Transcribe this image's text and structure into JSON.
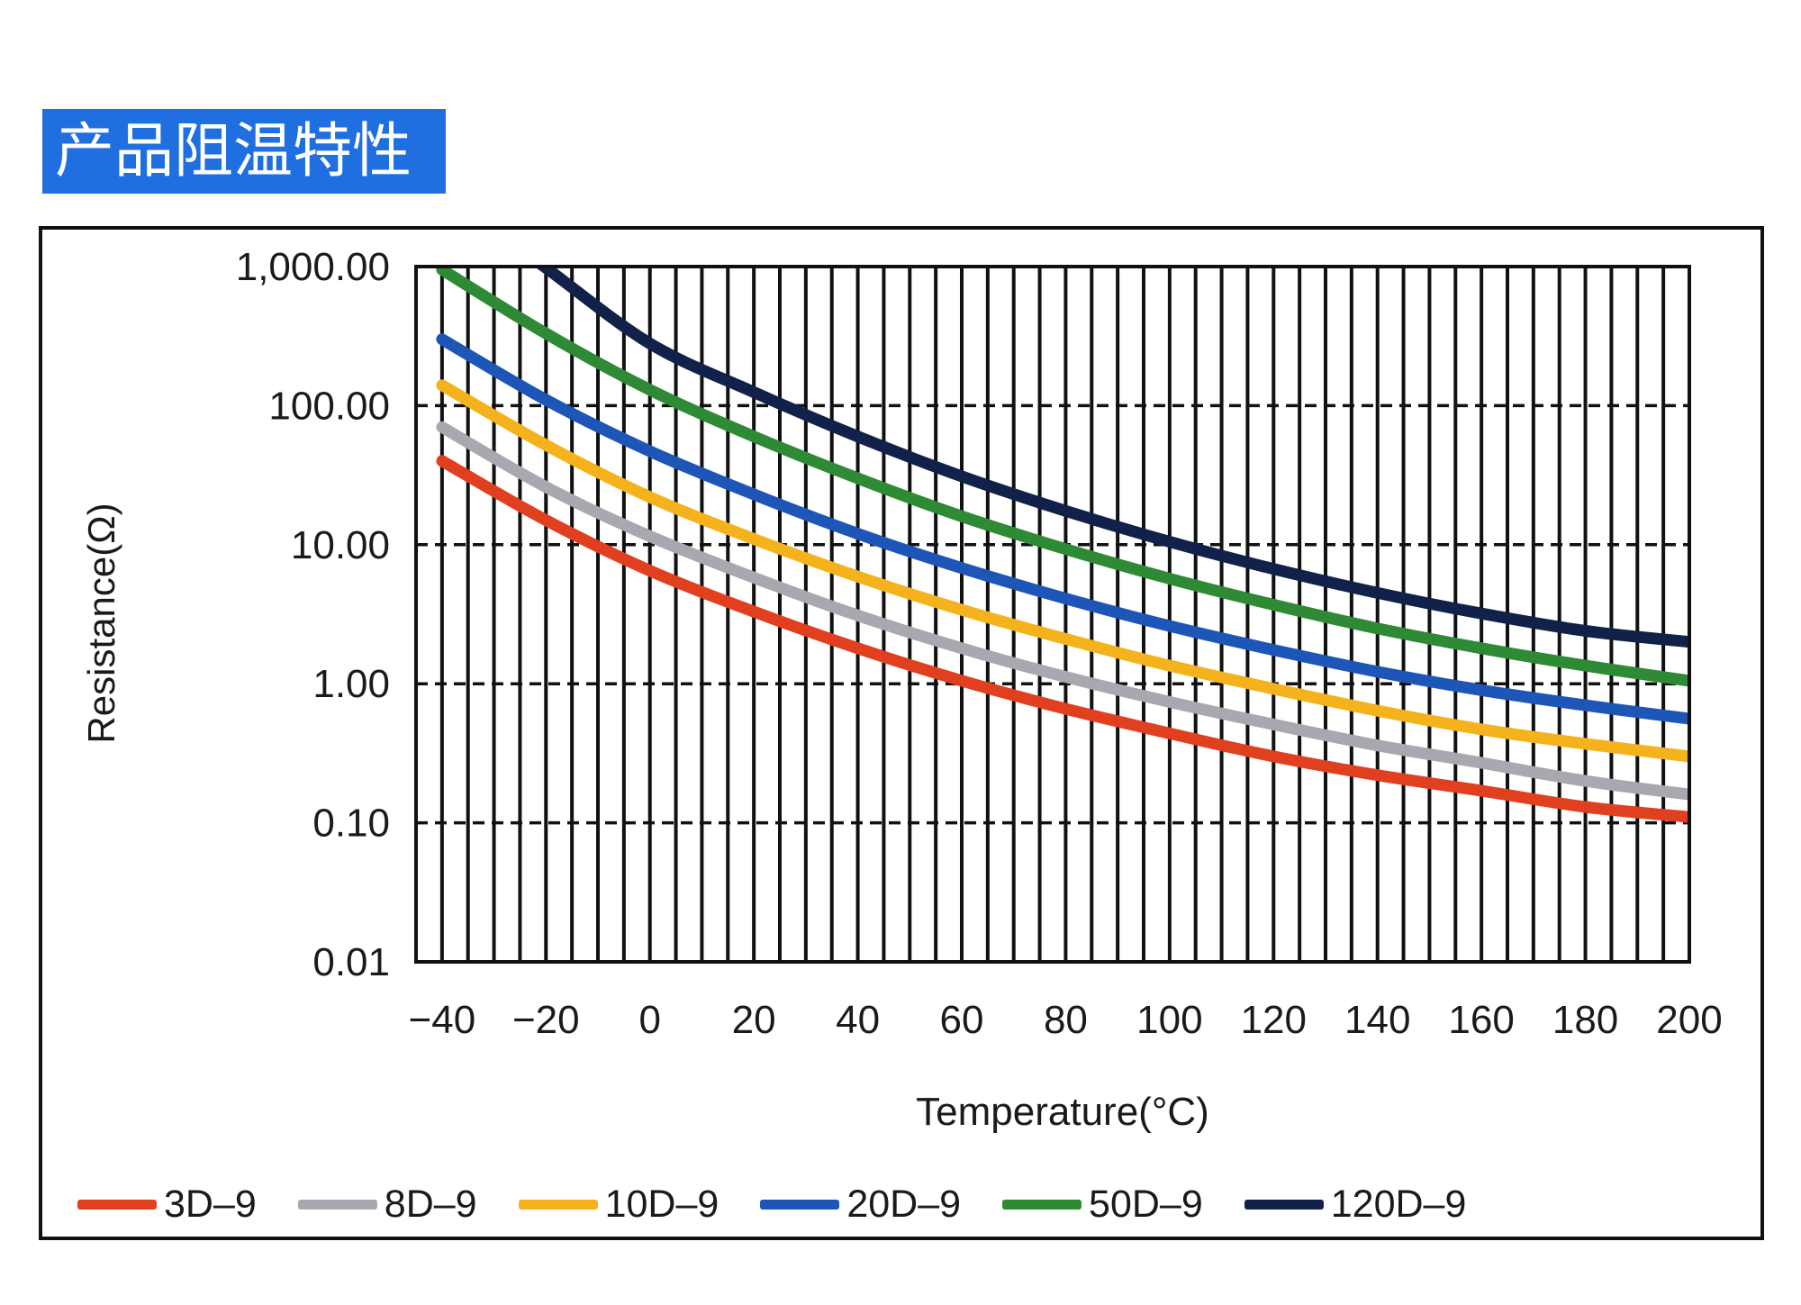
{
  "banner": {
    "title": "产品阻温特性"
  },
  "chart_data": {
    "type": "line",
    "y_scale": "log",
    "xlabel": "Temperature(°C)",
    "ylabel": "Resistance(Ω)",
    "xlim": [
      -45,
      200
    ],
    "ylim": [
      0.01,
      1000
    ],
    "x_ticks": [
      "−40",
      "−20",
      "0",
      "20",
      "40",
      "60",
      "80",
      "100",
      "120",
      "140",
      "160",
      "180",
      "200"
    ],
    "y_ticks": [
      "1,000.00",
      "100.00",
      "10.00",
      "1.00",
      "0.10",
      "0.01"
    ],
    "grid": true,
    "legend_position": "bottom",
    "x": [
      -40,
      -20,
      0,
      20,
      40,
      60,
      80,
      100,
      120,
      140,
      160,
      180,
      200
    ],
    "series": [
      {
        "name": "3D–9",
        "color": "#e0401f",
        "values": [
          40,
          15,
          6.5,
          3.3,
          1.8,
          1.05,
          0.66,
          0.44,
          0.3,
          0.22,
          0.17,
          0.13,
          0.11
        ]
      },
      {
        "name": "8D–9",
        "color": "#a8a8b0",
        "values": [
          70,
          26,
          11.5,
          5.8,
          3.1,
          1.8,
          1.12,
          0.74,
          0.51,
          0.36,
          0.27,
          0.2,
          0.16
        ]
      },
      {
        "name": "10D–9",
        "color": "#f4b21d",
        "values": [
          140,
          52,
          22,
          11,
          5.9,
          3.4,
          2.1,
          1.35,
          0.92,
          0.64,
          0.47,
          0.37,
          0.3
        ]
      },
      {
        "name": "20D–9",
        "color": "#1d56b6",
        "values": [
          300,
          110,
          47,
          23,
          12,
          6.8,
          4.1,
          2.6,
          1.75,
          1.22,
          0.9,
          0.7,
          0.56
        ]
      },
      {
        "name": "50D–9",
        "color": "#2e8a34",
        "values": [
          950,
          330,
          130,
          60,
          30,
          16,
          9.3,
          5.7,
          3.7,
          2.5,
          1.8,
          1.35,
          1.05
        ]
      },
      {
        "name": "120D–9",
        "color": "#112149",
        "values": [
          null,
          980,
          280,
          125,
          60,
          31,
          17.5,
          10.5,
          6.7,
          4.5,
          3.2,
          2.4,
          2.0
        ]
      }
    ]
  }
}
